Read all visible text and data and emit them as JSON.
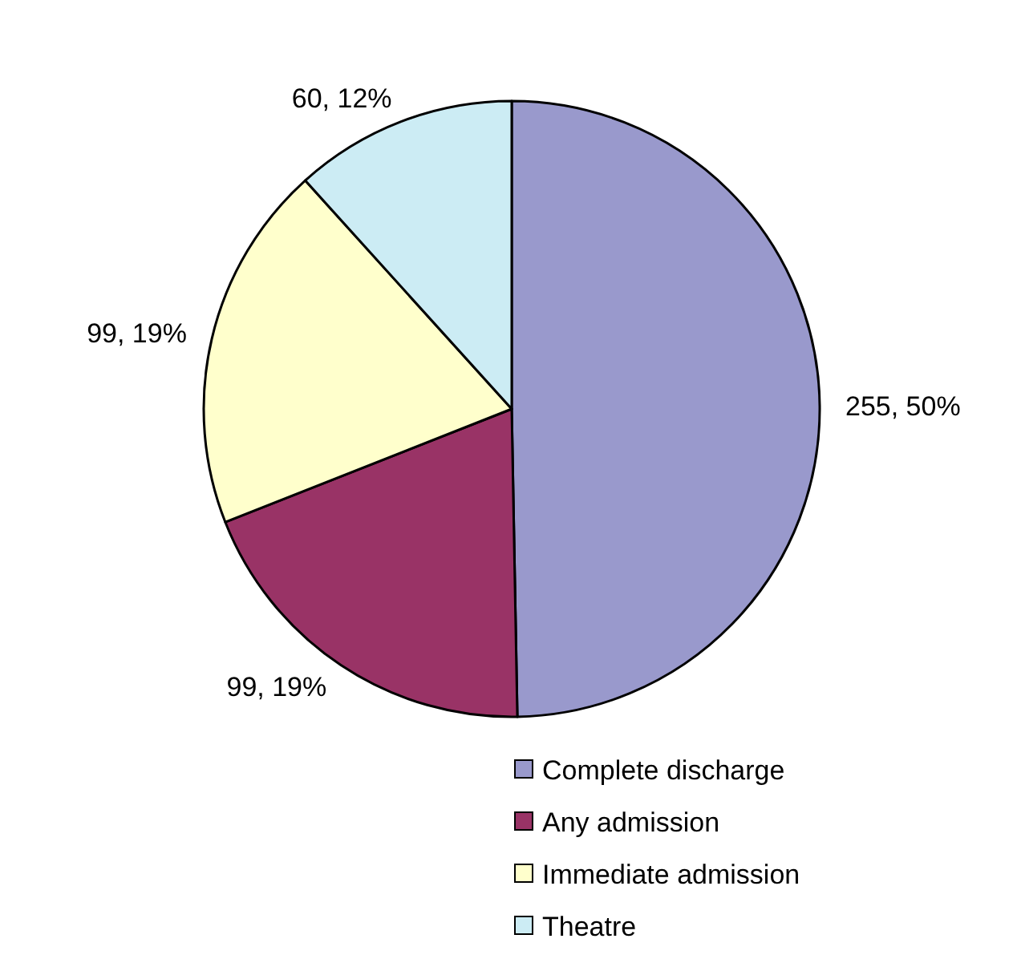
{
  "chart_data": {
    "type": "pie",
    "categories": [
      "Complete discharge",
      "Any admission",
      "Immediate admission",
      "Theatre"
    ],
    "values": [
      255,
      99,
      99,
      60
    ],
    "colors": [
      "#9999cc",
      "#993366",
      "#ffffcc",
      "#ccecf4"
    ],
    "value_labels": [
      "255, 50%",
      "99, 19%",
      "99, 19%",
      "60, 12%"
    ],
    "legend": "bottom"
  }
}
